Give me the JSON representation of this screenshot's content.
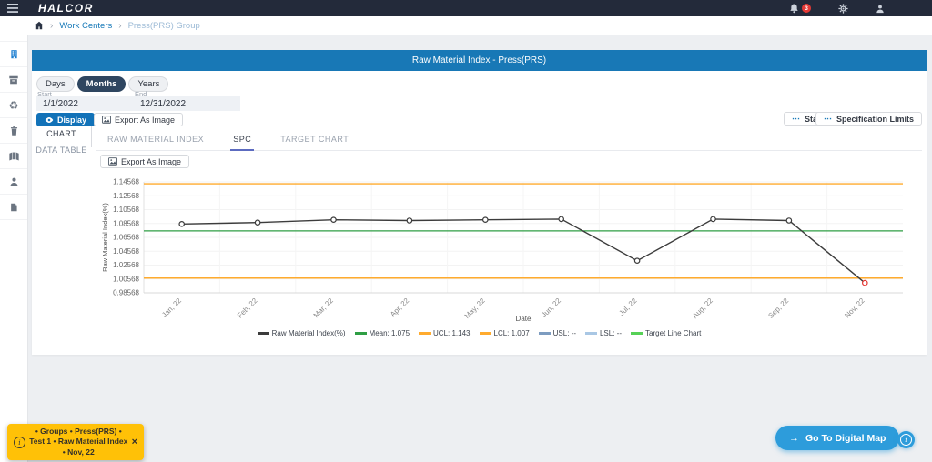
{
  "navbar": {
    "brand": "HALCOR",
    "notification_count": "3"
  },
  "breadcrumb": {
    "items": [
      "Work Centers",
      "Press(PRS) Group"
    ]
  },
  "sidebar": {
    "icons": [
      "factory",
      "plant-building",
      "archive",
      "recycle",
      "trash",
      "map",
      "worker",
      "document"
    ],
    "active_icon": "plant-building"
  },
  "panel": {
    "title": "Raw Material Index - Press(PRS)",
    "period": {
      "options": [
        "Days",
        "Months",
        "Years"
      ],
      "selected": "Months"
    },
    "date_range": {
      "start_label": "Start",
      "start_value": "1/1/2022",
      "end_label": "End",
      "end_value": "12/31/2022"
    },
    "actions": {
      "display": "Display",
      "export_image": "Export As Image",
      "staging": "Staging",
      "specification_limits": "Specification Limits"
    },
    "view_tabs": [
      {
        "label": "CHART",
        "active": true
      },
      {
        "label": "DATA TABLE",
        "active": false
      }
    ],
    "chart_tabs": [
      {
        "label": "RAW MATERIAL INDEX",
        "active": false
      },
      {
        "label": "SPC",
        "active": true
      },
      {
        "label": "TARGET CHART",
        "active": false
      }
    ]
  },
  "chart_data": {
    "type": "line",
    "title": "",
    "xlabel": "Date",
    "ylabel": "Raw Material Index(%)",
    "categories": [
      "Jan, 22",
      "Feb, 22",
      "Mar, 22",
      "Apr, 22",
      "May, 22",
      "Jun, 22",
      "Jul, 22",
      "Aug, 22",
      "Sep, 22",
      "Nov, 22"
    ],
    "series": [
      {
        "name": "Raw Material Index(%)",
        "values": [
          1.085,
          1.087,
          1.091,
          1.09,
          1.091,
          1.092,
          1.032,
          1.092,
          1.09,
          1.0
        ],
        "color": "#3c3c3c"
      }
    ],
    "control_lines": {
      "mean": {
        "value": 1.075,
        "color": "#2f9e44"
      },
      "ucl": {
        "value": 1.143,
        "color": "#ffab2e"
      },
      "lcl": {
        "value": 1.007,
        "color": "#ffab2e"
      }
    },
    "out_of_control_point": {
      "category": "Nov, 22",
      "value": 1.0,
      "color": "#e53935"
    },
    "ylim": [
      0.98568,
      1.14568
    ],
    "yticks": [
      "0.98568",
      "1.00568",
      "1.02568",
      "1.04568",
      "1.06568",
      "1.08568",
      "1.10568",
      "1.12568",
      "1.14568"
    ],
    "grid": true,
    "legend_position": "bottom",
    "legend": [
      {
        "label": "Raw Material Index(%)",
        "color": "#3c3c3c"
      },
      {
        "label": "Mean: 1.075",
        "color": "#2f9e44"
      },
      {
        "label": "UCL: 1.143",
        "color": "#ffab2e"
      },
      {
        "label": "LCL: 1.007",
        "color": "#ffab2e"
      },
      {
        "label": "USL: --",
        "color": "#7d9cc0"
      },
      {
        "label": "LSL: --",
        "color": "#a9c7e4"
      },
      {
        "label": "Target Line Chart",
        "color": "#56d156"
      }
    ]
  },
  "toast": {
    "message": "• Groups • Press(PRS) • Test 1 • Raw Material Index • Nov, 22",
    "color": "#ffc107"
  },
  "footer": {
    "digital_map": "Go To Digital Map"
  },
  "colors": {
    "navbar": "#232a3a",
    "header_blue": "#1878b6",
    "accent_blue": "#2d9cdb",
    "toast_yellow": "#ffc107"
  }
}
